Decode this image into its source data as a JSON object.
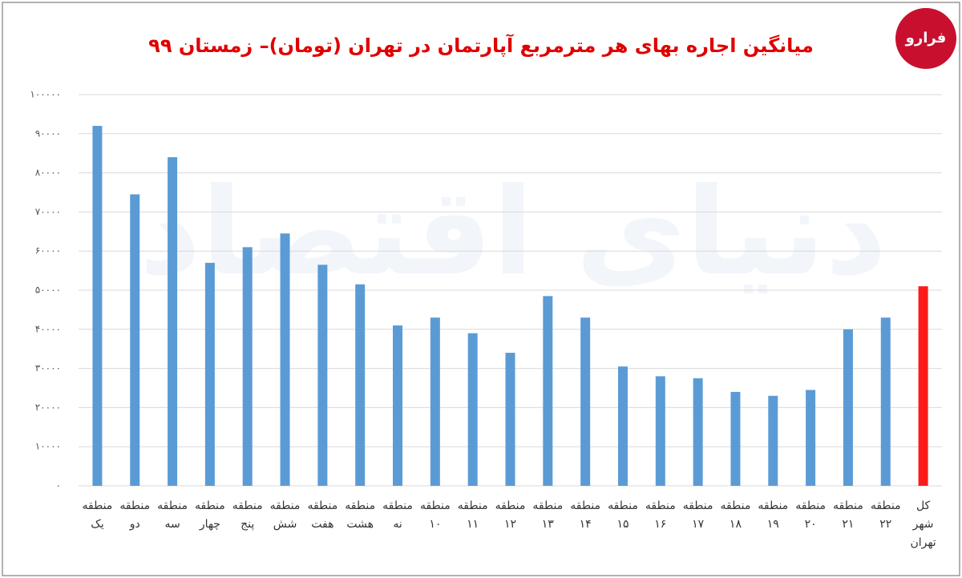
{
  "chart_data": {
    "type": "bar",
    "title": "میانگین اجاره بهای هر مترمربع آپارتمان در تهران (تومان)– زمستان ۹۹",
    "logo": "فرارو",
    "watermark": "دنیای اقتصاد",
    "categories": [
      "منطقه یک",
      "منطقه دو",
      "منطقه سه",
      "منطقه چهار",
      "منطقه پنج",
      "منطقه شش",
      "منطقه هفت",
      "منطقه هشت",
      "منطقه نه",
      "منطقه ۱۰",
      "منطقه ۱۱",
      "منطقه ۱۲",
      "منطقه ۱۳",
      "منطقه ۱۴",
      "منطقه ۱۵",
      "منطقه ۱۶",
      "منطقه ۱۷",
      "منطقه ۱۸",
      "منطقه ۱۹",
      "منطقه ۲۰",
      "منطقه ۲۱",
      "منطقه ۲۲",
      "کل شهر تهران"
    ],
    "values": [
      92000,
      74500,
      84000,
      57000,
      61000,
      64500,
      56500,
      51500,
      41000,
      43000,
      39000,
      34000,
      48500,
      43000,
      30500,
      28000,
      27500,
      24000,
      23000,
      24500,
      40000,
      43000,
      51000
    ],
    "colors": [
      "#5b9bd5",
      "#5b9bd5",
      "#5b9bd5",
      "#5b9bd5",
      "#5b9bd5",
      "#5b9bd5",
      "#5b9bd5",
      "#5b9bd5",
      "#5b9bd5",
      "#5b9bd5",
      "#5b9bd5",
      "#5b9bd5",
      "#5b9bd5",
      "#5b9bd5",
      "#5b9bd5",
      "#5b9bd5",
      "#5b9bd5",
      "#5b9bd5",
      "#5b9bd5",
      "#5b9bd5",
      "#5b9bd5",
      "#5b9bd5",
      "#ff1a1a"
    ],
    "ylim": [
      0,
      100000
    ],
    "yticks": [
      {
        "value": 0,
        "label": "۰"
      },
      {
        "value": 10000,
        "label": "۱۰۰۰۰"
      },
      {
        "value": 20000,
        "label": "۲۰۰۰۰"
      },
      {
        "value": 30000,
        "label": "۳۰۰۰۰"
      },
      {
        "value": 40000,
        "label": "۴۰۰۰۰"
      },
      {
        "value": 50000,
        "label": "۵۰۰۰۰"
      },
      {
        "value": 60000,
        "label": "۶۰۰۰۰"
      },
      {
        "value": 70000,
        "label": "۷۰۰۰۰"
      },
      {
        "value": 80000,
        "label": "۸۰۰۰۰"
      },
      {
        "value": 90000,
        "label": "۹۰۰۰۰"
      },
      {
        "value": 100000,
        "label": "۱۰۰۰۰۰"
      }
    ],
    "grid": true
  }
}
